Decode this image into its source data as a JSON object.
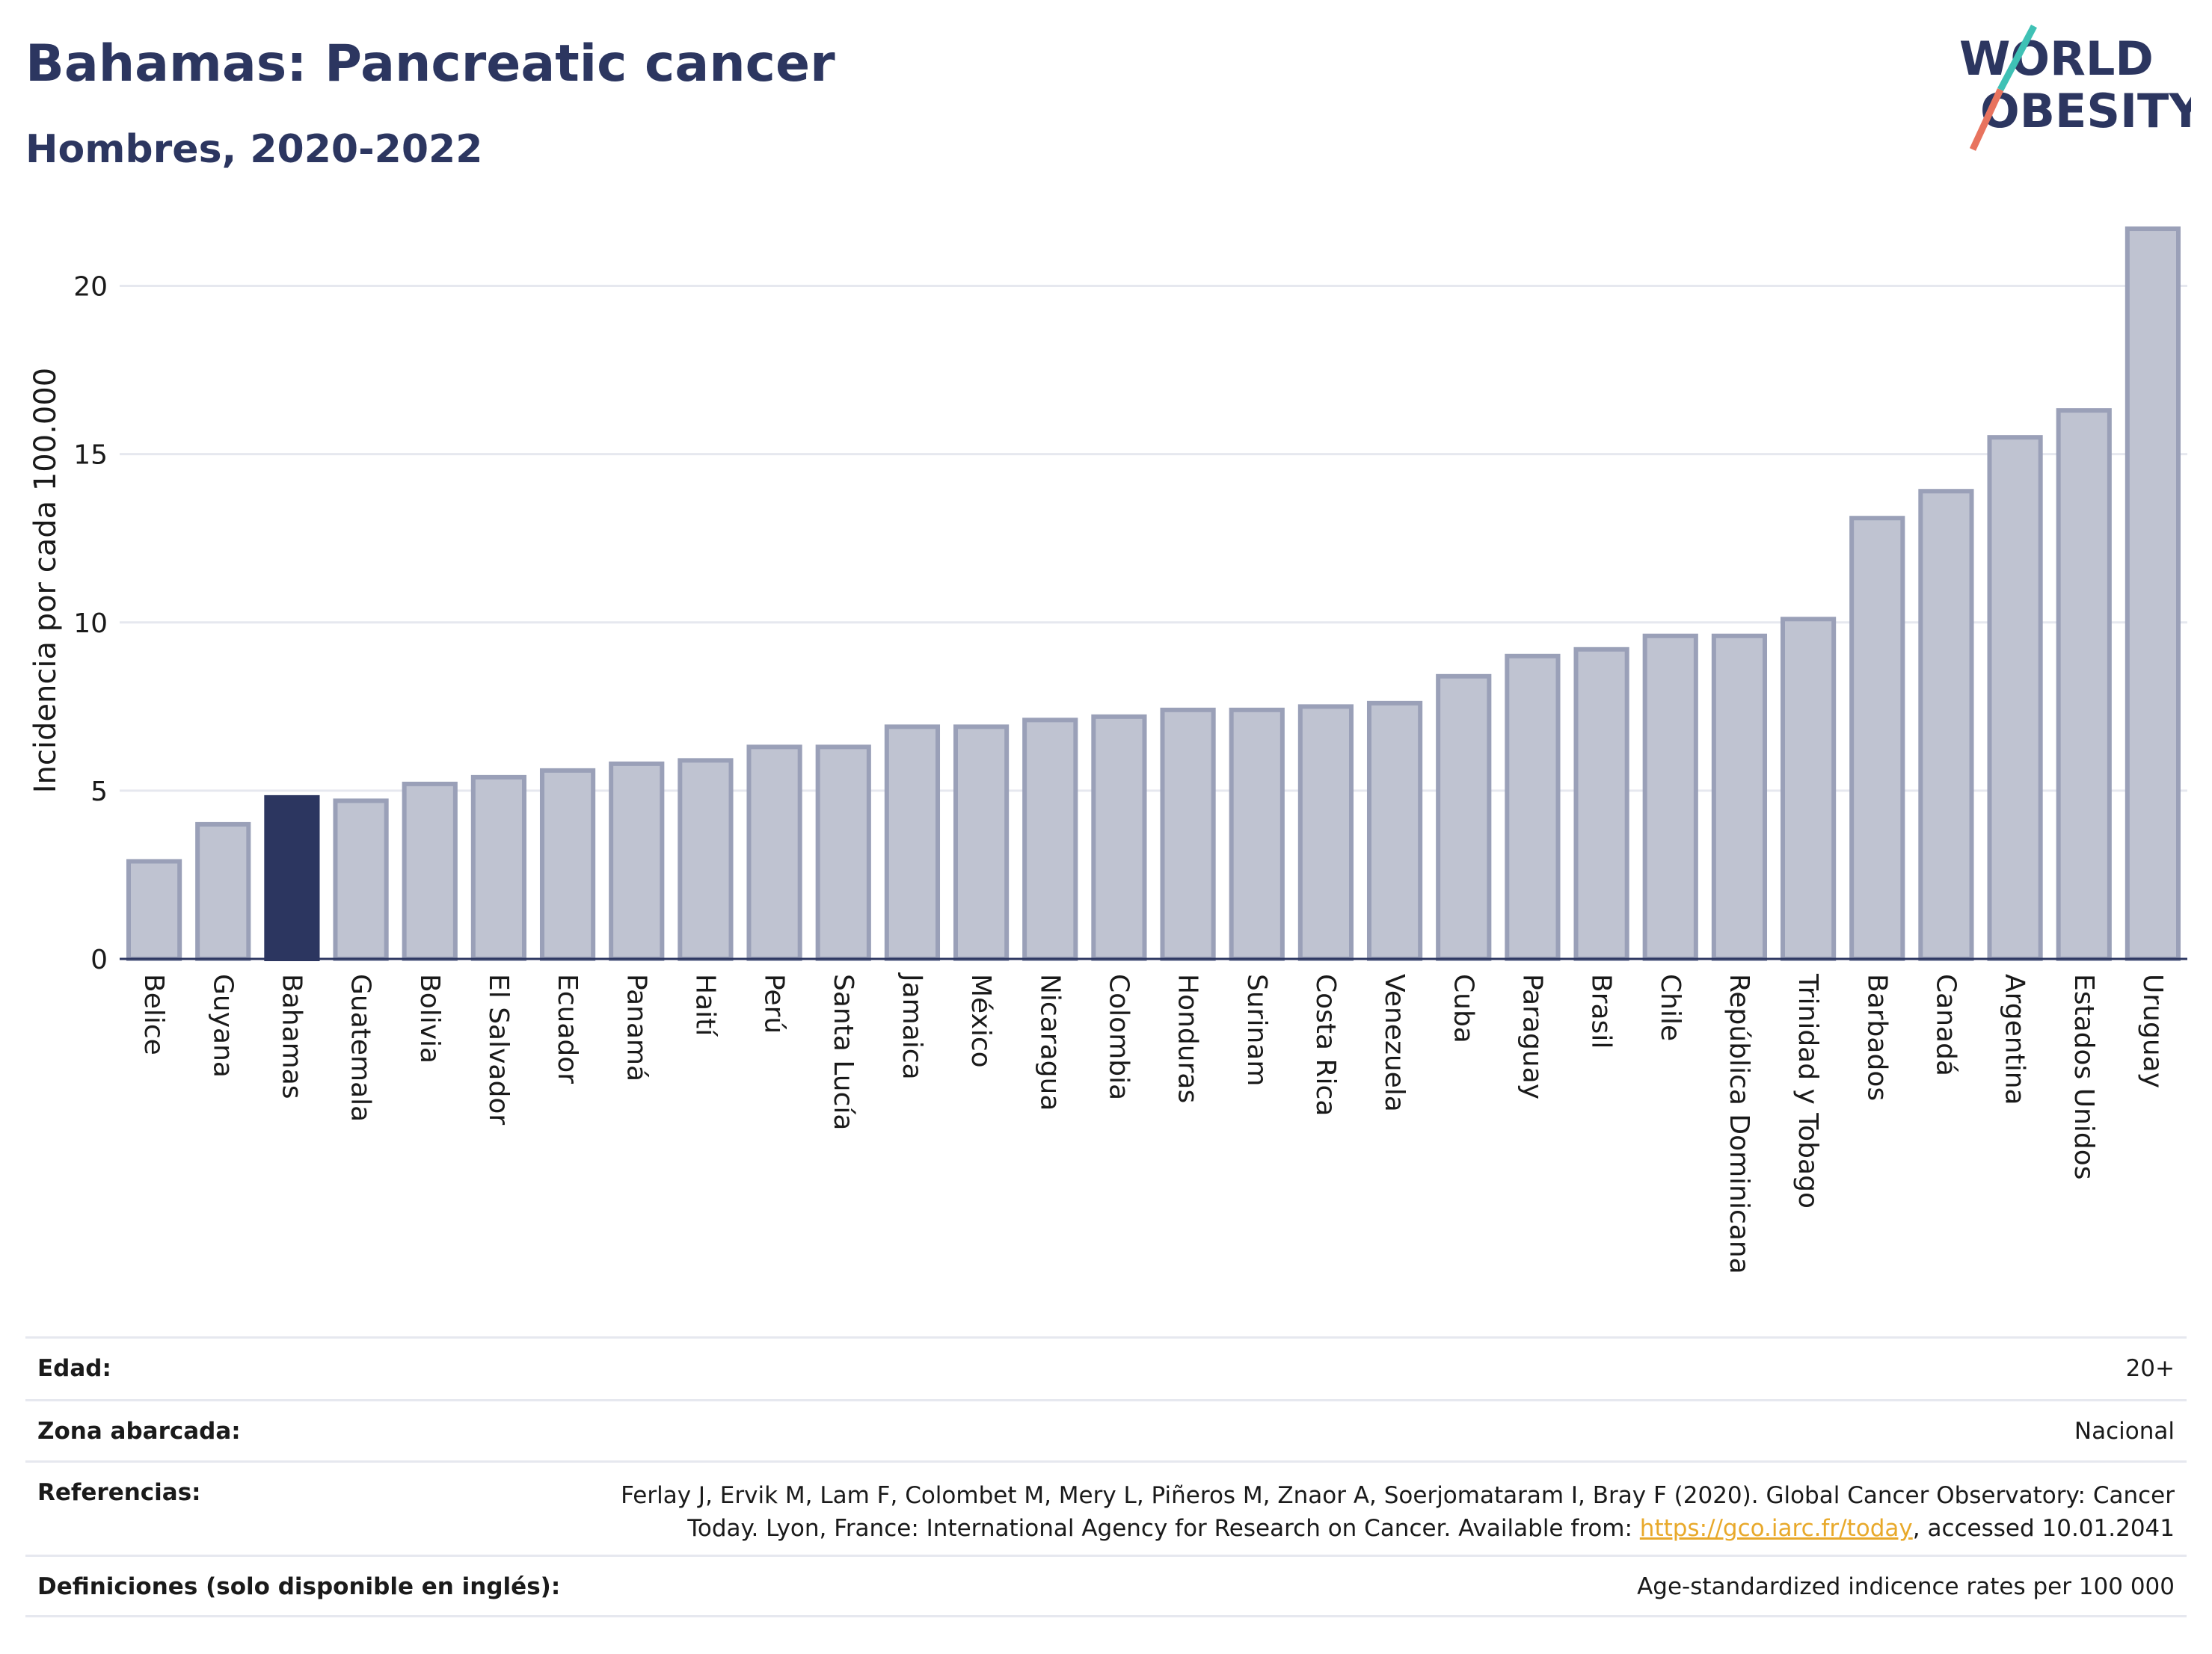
{
  "header": {
    "title": "Bahamas: Pancreatic cancer",
    "subtitle": "Hombres, 2020-2022"
  },
  "logo": {
    "line1": "WORLD",
    "line2": "OBESITY"
  },
  "colors": {
    "highlight": "#2c3660",
    "bar": "#bfc3d1",
    "bar_edge": "#9aa0b8",
    "grid": "#e6e8ef",
    "title": "#2c3660",
    "link": "#e8a92b",
    "logo_teal": "#3fc1b5",
    "logo_red": "#e8735e"
  },
  "chart_data": {
    "type": "bar",
    "ylabel": "Incidencia por cada 100.000",
    "ylim": [
      0,
      22.5
    ],
    "yticks": [
      0,
      5,
      10,
      15,
      20
    ],
    "grid": true,
    "highlight": "Bahamas",
    "categories": [
      "Belice",
      "Guyana",
      "Bahamas",
      "Guatemala",
      "Bolivia",
      "El Salvador",
      "Ecuador",
      "Panamá",
      "Haití",
      "Perú",
      "Santa Lucía",
      "Jamaica",
      "México",
      "Nicaragua",
      "Colombia",
      "Honduras",
      "Surinam",
      "Costa Rica",
      "Venezuela",
      "Cuba",
      "Paraguay",
      "Brasil",
      "Chile",
      "República Dominicana",
      "Trinidad y Tobago",
      "Barbados",
      "Canadá",
      "Argentina",
      "Estados Unidos",
      "Uruguay"
    ],
    "values": [
      2.9,
      4.0,
      4.8,
      4.7,
      5.2,
      5.4,
      5.6,
      5.8,
      5.9,
      6.3,
      6.3,
      6.9,
      6.9,
      7.1,
      7.2,
      7.4,
      7.4,
      7.5,
      7.6,
      8.4,
      9.0,
      9.2,
      9.6,
      9.6,
      10.1,
      13.1,
      13.9,
      15.5,
      16.3,
      21.7
    ]
  },
  "footer": {
    "rows": [
      {
        "label": "Edad:",
        "value": "20+"
      },
      {
        "label": "Zona abarcada:",
        "value": "Nacional"
      },
      {
        "label": "Referencias:",
        "value_line1": "Ferlay J, Ervik M, Lam F, Colombet M, Mery L, Piñeros M, Znaor A, Soerjomataram I, Bray F (2020). Global Cancer Observatory: Cancer",
        "value_line2_pre": "Today. Lyon, France: International Agency for Research on Cancer. Available from: ",
        "link": "https://gco.iarc.fr/today",
        "value_line2_post": ", accessed 10.01.2041"
      },
      {
        "label": "Definiciones (solo disponible en inglés):",
        "value": "Age-standardized indicence rates per 100 000"
      }
    ]
  }
}
